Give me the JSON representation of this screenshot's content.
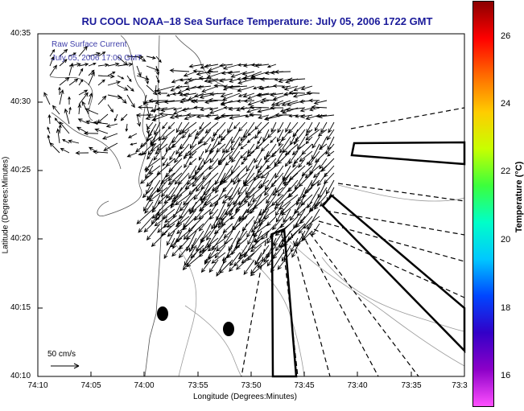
{
  "title": "RU COOL  NOAA–18  Sea Surface Temperature:  July 05, 2006 1722 GMT",
  "legend": {
    "line1": "Raw Surface Current",
    "line2": "July 05, 2006 17:00 GMT"
  },
  "axes": {
    "xlabel": "Longitude (Degrees:Minutes)",
    "ylabel": "Latitude (Degrees:Minutes)",
    "xticks": [
      "74:10",
      "74:05",
      "74:00",
      "73:55",
      "73:50",
      "73:45",
      "73:40",
      "73:35",
      "73:3"
    ],
    "yticks": [
      "40:35",
      "40:30",
      "40:25",
      "40:20",
      "40:15",
      "40:10"
    ]
  },
  "scale": {
    "label": "50 cm/s"
  },
  "colorbar": {
    "label": "Temperature (°C)",
    "ticks": [
      "26",
      "24",
      "22",
      "20",
      "18",
      "16"
    ],
    "colors": [
      "#8b0000",
      "#ff0000",
      "#ff6a00",
      "#ffcc00",
      "#c8ff00",
      "#3cff3c",
      "#00ffc8",
      "#00c8ff",
      "#0046ff",
      "#3200c8",
      "#8c00c8",
      "#ff50ff"
    ]
  }
}
